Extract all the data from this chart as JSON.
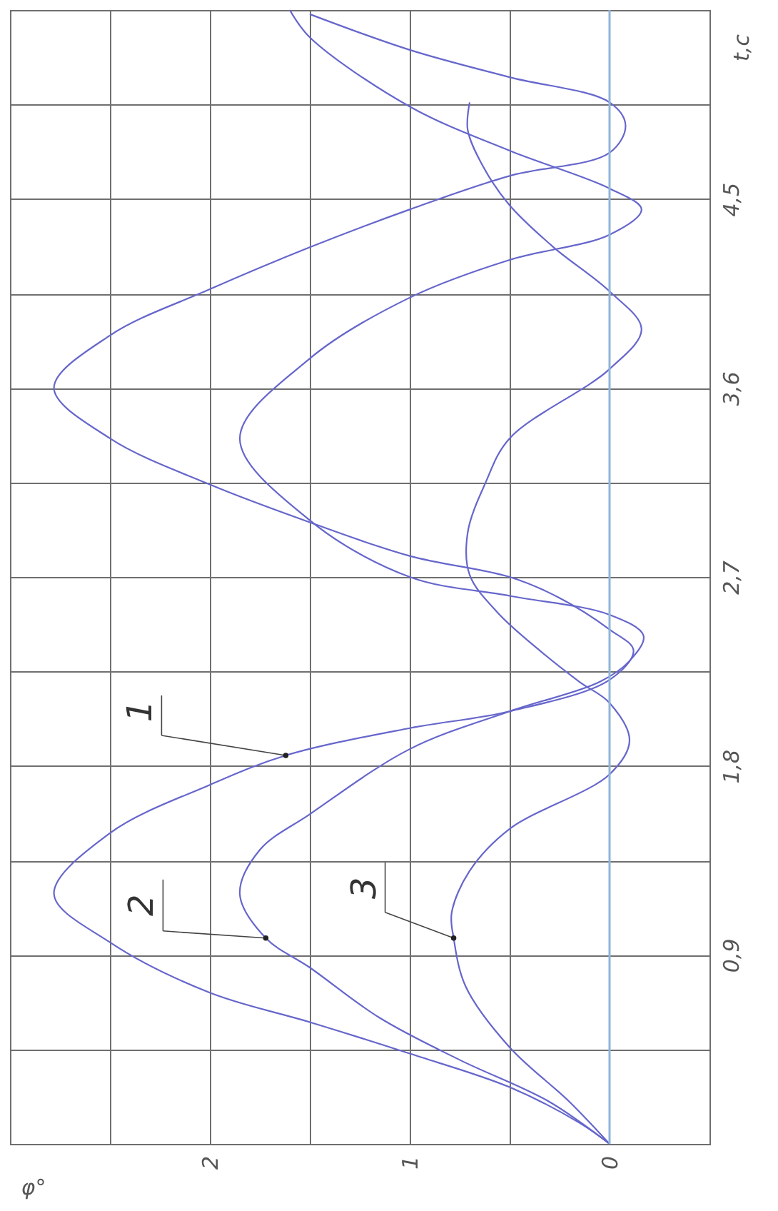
{
  "chart_data": {
    "type": "line",
    "xlabel": "φ°",
    "ylabel": "t,c",
    "xlim": [
      3,
      -0.5
    ],
    "ylim": [
      0,
      5.4
    ],
    "xticks": [
      {
        "value": 3,
        "label": null
      },
      {
        "value": 2.5,
        "label": null
      },
      2,
      {
        "value": 1.5,
        "label": null
      },
      1,
      {
        "value": 0.5,
        "label": null
      },
      0,
      {
        "value": -0.5,
        "label": null
      }
    ],
    "yticks": [
      {
        "value": 0,
        "label": null
      },
      {
        "value": 0.45,
        "label": null
      },
      {
        "value": 0.9,
        "label": "0,9"
      },
      {
        "value": 1.35,
        "label": null
      },
      {
        "value": 1.8,
        "label": "1,8"
      },
      {
        "value": 2.25,
        "label": null
      },
      {
        "value": 2.7,
        "label": "2,7"
      },
      {
        "value": 3.15,
        "label": null
      },
      {
        "value": 3.6,
        "label": "3,6"
      },
      {
        "value": 4.05,
        "label": null
      },
      {
        "value": 4.5,
        "label": "4,5"
      },
      {
        "value": 4.95,
        "label": null
      },
      {
        "value": 5.4,
        "label": null
      }
    ],
    "grid": true,
    "line_style": "solid",
    "ref_lines": [
      {
        "axis": "x",
        "value": 0,
        "color": "#8fb5d9"
      }
    ],
    "series": [
      {
        "color": "#6666cc",
        "values": [
          0,
          0.1,
          0.27,
          0.43,
          0.58,
          0.72,
          0.96,
          1.19,
          1.48,
          1.71,
          1.85,
          1.98,
          2.06,
          2.21,
          2.35,
          2.45,
          2.6,
          2.7,
          2.8,
          2.96,
          3.14,
          3.36,
          3.6,
          3.85,
          4.07,
          4.27,
          4.45,
          4.61,
          4.72,
          4.85,
          4.96,
          5.08,
          5.21,
          5.38
        ],
        "x": [
          0,
          0.15,
          0.5,
          1.0,
          1.5,
          2.0,
          2.5,
          2.78,
          2.5,
          2.0,
          1.62,
          1.0,
          0.5,
          0,
          -0.12,
          0,
          0.25,
          0.5,
          1.0,
          1.5,
          2.0,
          2.5,
          2.78,
          2.5,
          2.0,
          1.5,
          1.0,
          0.5,
          0,
          -0.08,
          0,
          0.5,
          1.0,
          1.5
        ]
      },
      {
        "color": "#6666cc",
        "values": [
          0,
          0.2,
          0.4,
          0.6,
          0.84,
          0.98,
          1.19,
          1.4,
          1.57,
          1.88,
          2.06,
          2.2,
          2.3,
          2.42,
          2.52,
          2.61,
          2.7,
          2.97,
          3.36,
          3.74,
          4.03,
          4.21,
          4.33,
          4.45,
          4.55,
          4.73,
          4.94,
          5.27,
          5.4
        ],
        "x": [
          0,
          0.3,
          0.75,
          1.15,
          1.5,
          1.72,
          1.85,
          1.75,
          1.5,
          1.0,
          0.5,
          0.05,
          -0.1,
          -0.17,
          0,
          0.5,
          1.0,
          1.5,
          1.85,
          1.5,
          1.0,
          0.5,
          0,
          -0.16,
          0,
          0.5,
          1.0,
          1.5,
          1.6
        ]
      },
      {
        "color": "#6666cc",
        "values": [
          0,
          0.2,
          0.46,
          0.75,
          0.98,
          1.1,
          1.3,
          1.5,
          1.76,
          1.92,
          2.1,
          2.2,
          2.35,
          2.53,
          2.71,
          2.91,
          3.15,
          3.36,
          3.69,
          3.88,
          4.06,
          4.27,
          4.47,
          4.65,
          4.83,
          4.96
        ],
        "x": [
          0,
          0.2,
          0.5,
          0.72,
          0.78,
          0.79,
          0.7,
          0.5,
          0,
          -0.1,
          0,
          0.15,
          0.35,
          0.56,
          0.7,
          0.71,
          0.62,
          0.5,
          0,
          -0.16,
          0,
          0.28,
          0.5,
          0.63,
          0.71,
          0.7
        ]
      }
    ],
    "annotations": [
      {
        "text": "1",
        "x": 1.62,
        "y": 1.85
      },
      {
        "text": "2",
        "x": 1.72,
        "y": 0.98
      },
      {
        "text": "3",
        "x": 0.78,
        "y": 0.98
      }
    ]
  }
}
